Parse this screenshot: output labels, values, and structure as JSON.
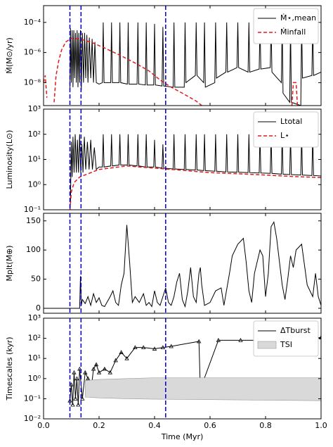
{
  "chart_data": [
    {
      "type": "line",
      "log": true,
      "ylabel": "Ṁ(M⊙/yr)",
      "legend": "upper right",
      "xlim": [
        0,
        1
      ],
      "xticks": [
        0,
        0.2,
        0.4,
        0.6,
        0.8,
        1
      ],
      "ylim": [
        3e-10,
        0.0013
      ],
      "yticks": [
        {
          "value": 1e-08,
          "label": "10⁻⁸"
        },
        {
          "value": 1e-06,
          "label": "10⁻⁶"
        },
        {
          "value": 0.0001,
          "label": "10⁻⁴"
        }
      ],
      "vlines": {
        "values": [
          0.095,
          0.135,
          0.44
        ],
        "color": "#0000cc"
      },
      "series": [
        {
          "name": "Ṁ⋆,mean",
          "color": "#000000",
          "dash": false,
          "x": [
            0.095,
            0.097,
            0.1,
            0.103,
            0.106,
            0.109,
            0.112,
            0.115,
            0.118,
            0.121,
            0.124,
            0.127,
            0.13,
            0.133,
            0.136,
            0.14,
            0.144,
            0.148,
            0.152,
            0.156,
            0.16,
            0.165,
            0.17,
            0.175,
            0.18,
            0.185,
            0.19,
            0.2,
            0.212,
            0.215,
            0.218,
            0.242,
            0.245,
            0.248,
            0.272,
            0.275,
            0.278,
            0.302,
            0.305,
            0.308,
            0.337,
            0.34,
            0.343,
            0.367,
            0.37,
            0.373,
            0.397,
            0.4,
            0.403,
            0.427,
            0.43,
            0.433,
            0.467,
            0.47,
            0.473,
            0.507,
            0.51,
            0.513,
            0.547,
            0.55,
            0.553,
            0.577,
            0.58,
            0.583,
            0.617,
            0.62,
            0.623,
            0.657,
            0.66,
            0.663,
            0.697,
            0.7,
            0.703,
            0.737,
            0.74,
            0.743,
            0.777,
            0.78,
            0.783,
            0.817,
            0.82,
            0.823,
            0.857,
            0.86,
            0.863,
            0.887,
            0.89,
            0.893,
            0.927,
            0.93,
            0.933,
            0.967,
            0.97,
            0.973,
            1.0
          ],
          "values": [
            3e-09,
            4e-05,
            1e-08,
            3e-05,
            5e-09,
            3e-05,
            2e-08,
            2e-05,
            1e-08,
            3e-05,
            5e-09,
            2e-05,
            1e-08,
            3e-05,
            3e-09,
            2e-05,
            1e-08,
            2e-05,
            2e-08,
            1.5e-05,
            1e-08,
            1e-05,
            2e-08,
            8e-06,
            1e-08,
            5e-06,
            1e-08,
            8e-09,
            1e-08,
            0.0001,
            1e-08,
            1e-08,
            0.0001,
            1e-08,
            1e-08,
            0.0001,
            1e-08,
            8e-09,
            0.0001,
            8e-09,
            8e-09,
            0.0001,
            8e-09,
            7e-09,
            0.0001,
            7e-09,
            7e-09,
            8e-05,
            7e-09,
            6e-09,
            5e-05,
            6e-09,
            5e-09,
            0.0001,
            5e-09,
            5e-09,
            0.0001,
            1e-08,
            3e-08,
            0.0001,
            3e-08,
            1e-08,
            0.0001,
            5e-09,
            1e-08,
            0.0001,
            2e-08,
            5e-08,
            0.0001,
            5e-08,
            1e-07,
            0.0001,
            1e-07,
            5e-08,
            0.0001,
            5e-08,
            8e-08,
            0.0001,
            8e-08,
            1e-07,
            0.0001,
            5e-08,
            1e-08,
            0.0001,
            2e-09,
            5e-10,
            0.0001,
            5e-10,
            3e-10,
            0.0001,
            2e-08,
            3e-08,
            0.0001,
            3e-08,
            5e-08
          ]
        },
        {
          "name": "Ṁinfall",
          "color": "#e41a1c",
          "dash": true,
          "x": [
            0,
            0.006,
            0.012,
            0.02,
            0.038,
            0.045,
            0.055,
            0.065,
            0.08,
            0.1,
            0.13,
            0.17,
            0.22,
            0.28,
            0.33,
            0.38,
            0.42,
            0.46,
            0.5,
            0.55,
            0.57,
            0.6,
            0.895,
            0.9,
            0.91,
            0.915
          ],
          "values": [
            1e-08,
            3e-08,
            1e-09,
            null,
            5e-10,
            3e-08,
            3e-07,
            1.5e-06,
            5e-06,
            9e-06,
            8e-06,
            5e-06,
            2e-06,
            6e-07,
            2e-07,
            6e-08,
            1.5e-08,
            5e-09,
            2e-09,
            6e-10,
            3e-10,
            null,
            3e-10,
            1e-08,
            1e-08,
            3e-10
          ]
        }
      ]
    },
    {
      "type": "line",
      "log": true,
      "ylabel": "Luminosity(L⊙)",
      "legend": "upper right",
      "xlim": [
        0,
        1
      ],
      "xticks": [
        0,
        0.2,
        0.4,
        0.6,
        0.8,
        1
      ],
      "ylim": [
        0.1,
        1000
      ],
      "yticks": [
        {
          "value": 0.1,
          "label": "10⁻¹"
        },
        {
          "value": 1,
          "label": "10⁰"
        },
        {
          "value": 10,
          "label": "10¹"
        },
        {
          "value": 100,
          "label": "10²"
        },
        {
          "value": 1000,
          "label": "10³"
        }
      ],
      "vlines": {
        "values": [
          0.095,
          0.135,
          0.44
        ],
        "color": "#0000cc"
      },
      "series": [
        {
          "name": "Ltotal",
          "color": "#000000",
          "dash": false,
          "x": [
            0.095,
            0.097,
            0.1,
            0.103,
            0.106,
            0.11,
            0.114,
            0.118,
            0.122,
            0.126,
            0.13,
            0.134,
            0.138,
            0.142,
            0.147,
            0.152,
            0.158,
            0.164,
            0.17,
            0.176,
            0.183,
            0.19,
            0.2,
            0.212,
            0.215,
            0.218,
            0.242,
            0.245,
            0.248,
            0.272,
            0.275,
            0.278,
            0.302,
            0.305,
            0.308,
            0.337,
            0.34,
            0.343,
            0.367,
            0.37,
            0.373,
            0.397,
            0.4,
            0.403,
            0.427,
            0.43,
            0.433,
            0.467,
            0.47,
            0.473,
            0.507,
            0.51,
            0.513,
            0.547,
            0.55,
            0.553,
            0.577,
            0.58,
            0.583,
            0.617,
            0.62,
            0.623,
            0.657,
            0.66,
            0.663,
            0.697,
            0.7,
            0.703,
            0.737,
            0.74,
            0.743,
            0.777,
            0.78,
            0.783,
            0.817,
            0.82,
            0.823,
            0.857,
            0.86,
            0.863,
            0.887,
            0.89,
            0.893,
            0.927,
            0.93,
            0.933,
            0.967,
            0.97,
            0.973,
            1.0
          ],
          "values": [
            0.1,
            0.2,
            50,
            2,
            80,
            3,
            100,
            3,
            60,
            3,
            100,
            3,
            40,
            3,
            80,
            4,
            50,
            4,
            60,
            4,
            30,
            4,
            5,
            5,
            100,
            5,
            5.5,
            100,
            5.5,
            6,
            100,
            6,
            6,
            100,
            6,
            5.5,
            100,
            5.5,
            5,
            100,
            5,
            5,
            60,
            5,
            4.5,
            40,
            4.5,
            4.2,
            100,
            4.2,
            4,
            100,
            4,
            3.8,
            100,
            3.8,
            3.6,
            100,
            3.6,
            3.4,
            100,
            3.4,
            3.2,
            100,
            3.2,
            3.1,
            100,
            3.1,
            3,
            100,
            3,
            2.9,
            100,
            2.9,
            2.8,
            100,
            2.8,
            2.6,
            100,
            2.6,
            2.5,
            100,
            2.5,
            2.4,
            100,
            2.4,
            2.3,
            100,
            2.3,
            2.2
          ]
        },
        {
          "name": "L⋆",
          "color": "#e41a1c",
          "dash": true,
          "x": [
            0.095,
            0.1,
            0.11,
            0.13,
            0.2,
            0.3,
            0.4,
            0.5,
            0.6,
            0.7,
            0.8,
            0.9,
            1.0
          ],
          "values": [
            0.1,
            0.5,
            1.2,
            2,
            4,
            5.5,
            4.5,
            3.7,
            3,
            2.7,
            2.4,
            2.1,
            1.9
          ]
        }
      ]
    },
    {
      "type": "line",
      "log": false,
      "ylabel": "Mplt(M⊕)",
      "xlim": [
        0,
        1
      ],
      "xticks": [
        0,
        0.2,
        0.4,
        0.6,
        0.8,
        1
      ],
      "ylim": [
        -8.5,
        163
      ],
      "yticks": [
        0,
        50,
        100,
        150
      ],
      "vlines": {
        "values": [
          0.095,
          0.135,
          0.44
        ],
        "color": "#0000cc"
      },
      "series": [
        {
          "color": "#000000",
          "dash": false,
          "x": [
            0,
            0.13,
            0.133,
            0.136,
            0.14,
            0.15,
            0.16,
            0.17,
            0.18,
            0.19,
            0.2,
            0.21,
            0.22,
            0.24,
            0.25,
            0.26,
            0.27,
            0.28,
            0.29,
            0.3,
            0.31,
            0.32,
            0.33,
            0.345,
            0.36,
            0.37,
            0.38,
            0.39,
            0.4,
            0.41,
            0.42,
            0.43,
            0.44,
            0.45,
            0.46,
            0.47,
            0.48,
            0.49,
            0.5,
            0.51,
            0.52,
            0.53,
            0.54,
            0.55,
            0.56,
            0.565,
            0.57,
            0.58,
            0.6,
            0.62,
            0.64,
            0.65,
            0.67,
            0.68,
            0.7,
            0.72,
            0.73,
            0.74,
            0.75,
            0.76,
            0.78,
            0.79,
            0.8,
            0.81,
            0.82,
            0.83,
            0.84,
            0.85,
            0.86,
            0.87,
            0.88,
            0.89,
            0.9,
            0.91,
            0.93,
            0.95,
            0.97,
            0.98,
            0.99,
            1.0
          ],
          "values": [
            0,
            0,
            55,
            5,
            15,
            8,
            20,
            5,
            25,
            10,
            18,
            5,
            3,
            20,
            30,
            10,
            5,
            40,
            60,
            143,
            80,
            10,
            20,
            10,
            25,
            5,
            10,
            3,
            30,
            10,
            5,
            20,
            35,
            10,
            5,
            20,
            45,
            60,
            15,
            3,
            30,
            70,
            20,
            10,
            60,
            70,
            40,
            5,
            10,
            30,
            35,
            5,
            60,
            90,
            110,
            120,
            80,
            30,
            10,
            60,
            100,
            90,
            20,
            60,
            140,
            148,
            120,
            80,
            40,
            15,
            50,
            90,
            70,
            100,
            110,
            40,
            20,
            60,
            20,
            5
          ]
        }
      ]
    },
    {
      "type": "line",
      "log": true,
      "ylabel": "Timescales (kyr)",
      "xlabel": "Time (Myr)",
      "legend": "upper right",
      "xlim": [
        0,
        1
      ],
      "xticks": [
        {
          "value": 0,
          "label": "0.0"
        },
        0.2,
        0.4,
        0.6,
        0.8,
        {
          "value": 1,
          "label": "1.0"
        }
      ],
      "ylim": [
        0.01,
        1000
      ],
      "yticks": [
        {
          "value": 0.01,
          "label": "10⁻²"
        },
        {
          "value": 0.1,
          "label": "10⁻¹"
        },
        {
          "value": 1,
          "label": "10⁰"
        },
        {
          "value": 10,
          "label": "10¹"
        },
        {
          "value": 100,
          "label": "10²"
        },
        {
          "value": 1000,
          "label": "10³"
        }
      ],
      "vlines": {
        "values": [
          0.095,
          0.135,
          0.44
        ],
        "color": "#0000cc"
      },
      "series": [
        {
          "name": "ΔTburst",
          "color": "#000000",
          "dash": false,
          "marker": "triangle",
          "x": [
            0.095,
            0.1,
            0.105,
            0.11,
            0.115,
            0.12,
            0.125,
            0.13,
            0.14,
            0.15,
            0.16,
            0.17,
            0.18,
            0.19,
            0.2,
            0.22,
            0.24,
            0.26,
            0.28,
            0.3,
            0.33,
            0.36,
            0.4,
            0.43,
            0.46,
            0.56,
            0.565,
            0.63,
            0.71,
            0.8,
            0.87,
            1.0
          ],
          "values": [
            0.08,
            0.5,
            0.05,
            2,
            0.1,
            1,
            0.05,
            3,
            0.1,
            2,
            1,
            0.2,
            3,
            5,
            2,
            3,
            2,
            8,
            20,
            10,
            35,
            35,
            30,
            35,
            40,
            70,
            0.3,
            80,
            80,
            80,
            80,
            110
          ]
        },
        {
          "name": "TSI",
          "type": "band",
          "color": "#d9d9d9",
          "x": [
            0.15,
            0.2,
            0.3,
            0.4,
            0.6,
            0.8,
            1.0
          ],
          "lower": [
            0.12,
            0.11,
            0.1,
            0.095,
            0.09,
            0.085,
            0.08
          ],
          "upper": [
            0.8,
            0.9,
            1.0,
            1.1,
            1.1,
            1.1,
            1.1
          ]
        }
      ]
    }
  ]
}
